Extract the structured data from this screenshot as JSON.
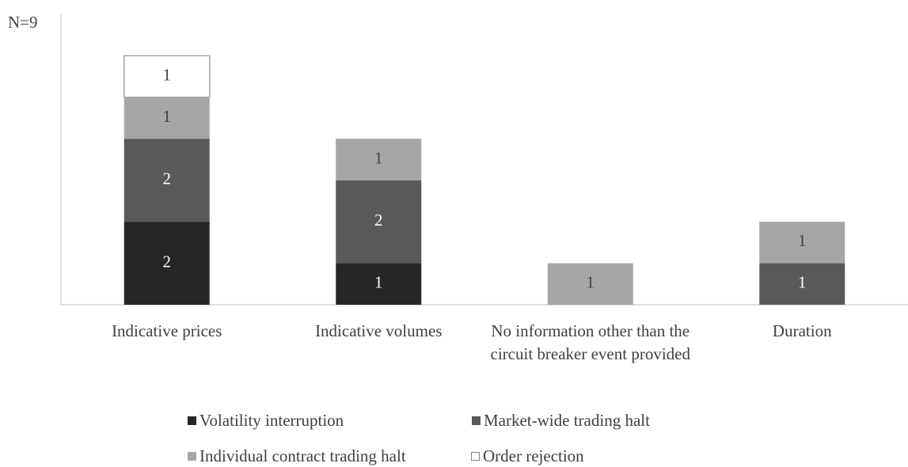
{
  "chart_data": {
    "type": "stacked_bar",
    "title": "N=9",
    "categories": [
      "Indicative prices",
      "Indicative volumes",
      "No information other than the circuit breaker event provided",
      "Duration"
    ],
    "series": [
      {
        "name": "Volatility interruption",
        "color": "#262626",
        "values": [
          2,
          1,
          null,
          null
        ]
      },
      {
        "name": "Market-wide trading halt",
        "color": "#595959",
        "values": [
          2,
          2,
          null,
          1
        ]
      },
      {
        "name": "Individual contract trading halt",
        "color": "#a6a6a6",
        "values": [
          1,
          1,
          1,
          1
        ]
      },
      {
        "name": "Order rejection",
        "color": "#ffffff",
        "values": [
          1,
          null,
          null,
          null
        ]
      }
    ],
    "ylim": [
      0,
      7
    ],
    "legend": "bottom"
  }
}
